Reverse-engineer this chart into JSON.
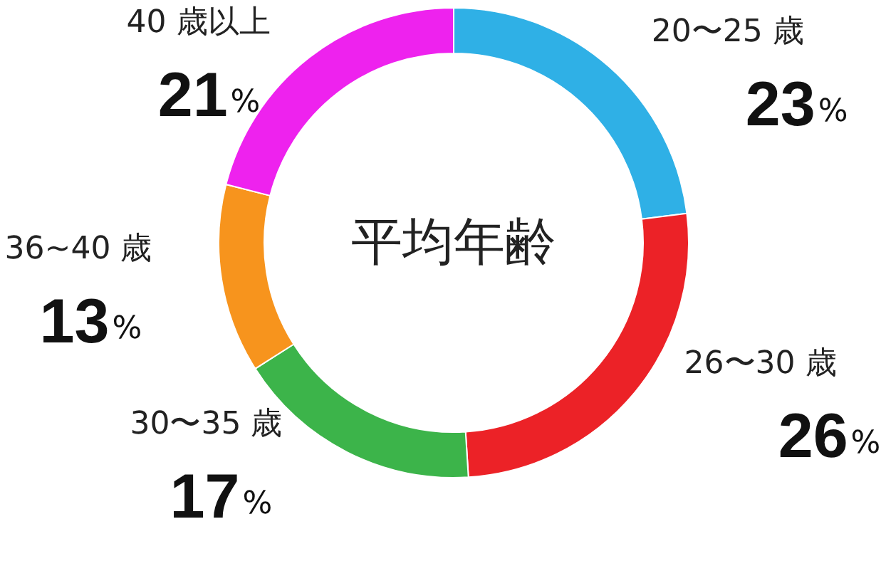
{
  "chart_data": {
    "type": "donut",
    "title": "平均年齢",
    "categories": [
      "20〜25 歳",
      "26〜30 歳",
      "30〜35 歳",
      "36~40 歳",
      "40 歳以上"
    ],
    "values": [
      23,
      26,
      17,
      13,
      21
    ],
    "colors": [
      "#2fb0e6",
      "#ec2227",
      "#3cb44a",
      "#f7941d",
      "#ee22ee"
    ],
    "value_labels": [
      "23%",
      "26%",
      "17%",
      "13%",
      "21%"
    ]
  }
}
